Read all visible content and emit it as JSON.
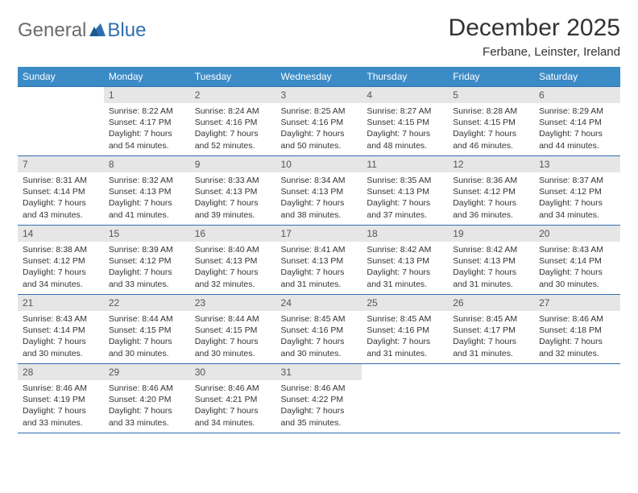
{
  "logo": {
    "part1": "General",
    "part2": "Blue"
  },
  "title": "December 2025",
  "location": "Ferbane, Leinster, Ireland",
  "colors": {
    "header_bg": "#3b8bc6",
    "header_text": "#ffffff",
    "border": "#2f6fb0",
    "daynum_bg": "#e6e6e6",
    "body_text": "#333333",
    "logo_gray": "#6b6b6b",
    "logo_blue": "#2f6fb0"
  },
  "weekdays": [
    "Sunday",
    "Monday",
    "Tuesday",
    "Wednesday",
    "Thursday",
    "Friday",
    "Saturday"
  ],
  "weeks": [
    [
      {
        "empty": true
      },
      {
        "n": "1",
        "sr": "8:22 AM",
        "ss": "4:17 PM",
        "dl": "7 hours and 54 minutes."
      },
      {
        "n": "2",
        "sr": "8:24 AM",
        "ss": "4:16 PM",
        "dl": "7 hours and 52 minutes."
      },
      {
        "n": "3",
        "sr": "8:25 AM",
        "ss": "4:16 PM",
        "dl": "7 hours and 50 minutes."
      },
      {
        "n": "4",
        "sr": "8:27 AM",
        "ss": "4:15 PM",
        "dl": "7 hours and 48 minutes."
      },
      {
        "n": "5",
        "sr": "8:28 AM",
        "ss": "4:15 PM",
        "dl": "7 hours and 46 minutes."
      },
      {
        "n": "6",
        "sr": "8:29 AM",
        "ss": "4:14 PM",
        "dl": "7 hours and 44 minutes."
      }
    ],
    [
      {
        "n": "7",
        "sr": "8:31 AM",
        "ss": "4:14 PM",
        "dl": "7 hours and 43 minutes."
      },
      {
        "n": "8",
        "sr": "8:32 AM",
        "ss": "4:13 PM",
        "dl": "7 hours and 41 minutes."
      },
      {
        "n": "9",
        "sr": "8:33 AM",
        "ss": "4:13 PM",
        "dl": "7 hours and 39 minutes."
      },
      {
        "n": "10",
        "sr": "8:34 AM",
        "ss": "4:13 PM",
        "dl": "7 hours and 38 minutes."
      },
      {
        "n": "11",
        "sr": "8:35 AM",
        "ss": "4:13 PM",
        "dl": "7 hours and 37 minutes."
      },
      {
        "n": "12",
        "sr": "8:36 AM",
        "ss": "4:12 PM",
        "dl": "7 hours and 36 minutes."
      },
      {
        "n": "13",
        "sr": "8:37 AM",
        "ss": "4:12 PM",
        "dl": "7 hours and 34 minutes."
      }
    ],
    [
      {
        "n": "14",
        "sr": "8:38 AM",
        "ss": "4:12 PM",
        "dl": "7 hours and 34 minutes."
      },
      {
        "n": "15",
        "sr": "8:39 AM",
        "ss": "4:12 PM",
        "dl": "7 hours and 33 minutes."
      },
      {
        "n": "16",
        "sr": "8:40 AM",
        "ss": "4:13 PM",
        "dl": "7 hours and 32 minutes."
      },
      {
        "n": "17",
        "sr": "8:41 AM",
        "ss": "4:13 PM",
        "dl": "7 hours and 31 minutes."
      },
      {
        "n": "18",
        "sr": "8:42 AM",
        "ss": "4:13 PM",
        "dl": "7 hours and 31 minutes."
      },
      {
        "n": "19",
        "sr": "8:42 AM",
        "ss": "4:13 PM",
        "dl": "7 hours and 31 minutes."
      },
      {
        "n": "20",
        "sr": "8:43 AM",
        "ss": "4:14 PM",
        "dl": "7 hours and 30 minutes."
      }
    ],
    [
      {
        "n": "21",
        "sr": "8:43 AM",
        "ss": "4:14 PM",
        "dl": "7 hours and 30 minutes."
      },
      {
        "n": "22",
        "sr": "8:44 AM",
        "ss": "4:15 PM",
        "dl": "7 hours and 30 minutes."
      },
      {
        "n": "23",
        "sr": "8:44 AM",
        "ss": "4:15 PM",
        "dl": "7 hours and 30 minutes."
      },
      {
        "n": "24",
        "sr": "8:45 AM",
        "ss": "4:16 PM",
        "dl": "7 hours and 30 minutes."
      },
      {
        "n": "25",
        "sr": "8:45 AM",
        "ss": "4:16 PM",
        "dl": "7 hours and 31 minutes."
      },
      {
        "n": "26",
        "sr": "8:45 AM",
        "ss": "4:17 PM",
        "dl": "7 hours and 31 minutes."
      },
      {
        "n": "27",
        "sr": "8:46 AM",
        "ss": "4:18 PM",
        "dl": "7 hours and 32 minutes."
      }
    ],
    [
      {
        "n": "28",
        "sr": "8:46 AM",
        "ss": "4:19 PM",
        "dl": "7 hours and 33 minutes."
      },
      {
        "n": "29",
        "sr": "8:46 AM",
        "ss": "4:20 PM",
        "dl": "7 hours and 33 minutes."
      },
      {
        "n": "30",
        "sr": "8:46 AM",
        "ss": "4:21 PM",
        "dl": "7 hours and 34 minutes."
      },
      {
        "n": "31",
        "sr": "8:46 AM",
        "ss": "4:22 PM",
        "dl": "7 hours and 35 minutes."
      },
      {
        "empty": true
      },
      {
        "empty": true
      },
      {
        "empty": true
      }
    ]
  ],
  "labels": {
    "sunrise": "Sunrise:",
    "sunset": "Sunset:",
    "daylight": "Daylight:"
  }
}
